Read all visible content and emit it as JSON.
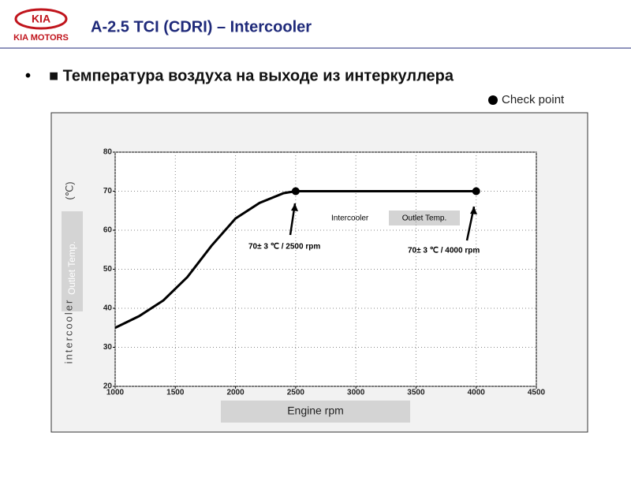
{
  "header": {
    "logo": "KIA",
    "brand": "KIA MOTORS",
    "title": "A-2.5 TCI (CDRI) – Intercooler",
    "bullet": "■ Температура воздуха на выходе из интеркуллера"
  },
  "chart_data": {
    "type": "line",
    "x": [
      1000,
      1200,
      1400,
      1600,
      1800,
      2000,
      2200,
      2400,
      2500,
      2900,
      4000
    ],
    "series": [
      {
        "color": "#000000",
        "values": [
          35,
          38,
          42,
          48,
          56,
          63,
          67,
          69.5,
          70,
          70,
          70
        ]
      }
    ],
    "check_points": {
      "name": "Check point",
      "color": "#000000",
      "x": [
        2500,
        4000
      ],
      "values": [
        70,
        70
      ]
    },
    "xlim": [
      1000,
      4500
    ],
    "xticks": [
      1000,
      1500,
      2000,
      2500,
      3000,
      3500,
      4000,
      4500
    ],
    "ylim": [
      20,
      80
    ],
    "yticks": [
      20,
      30,
      40,
      50,
      60,
      70,
      80
    ],
    "grid": true,
    "xlabel": "Engine rpm",
    "ylabel": [
      "intercooler",
      "Outlet Temp.",
      "(℃)"
    ],
    "annotations": [
      "70± 3 ℃ / 2500 rpm",
      "70± 3 ℃ / 4000 rpm",
      "Intercooler",
      "Outlet Temp."
    ]
  }
}
